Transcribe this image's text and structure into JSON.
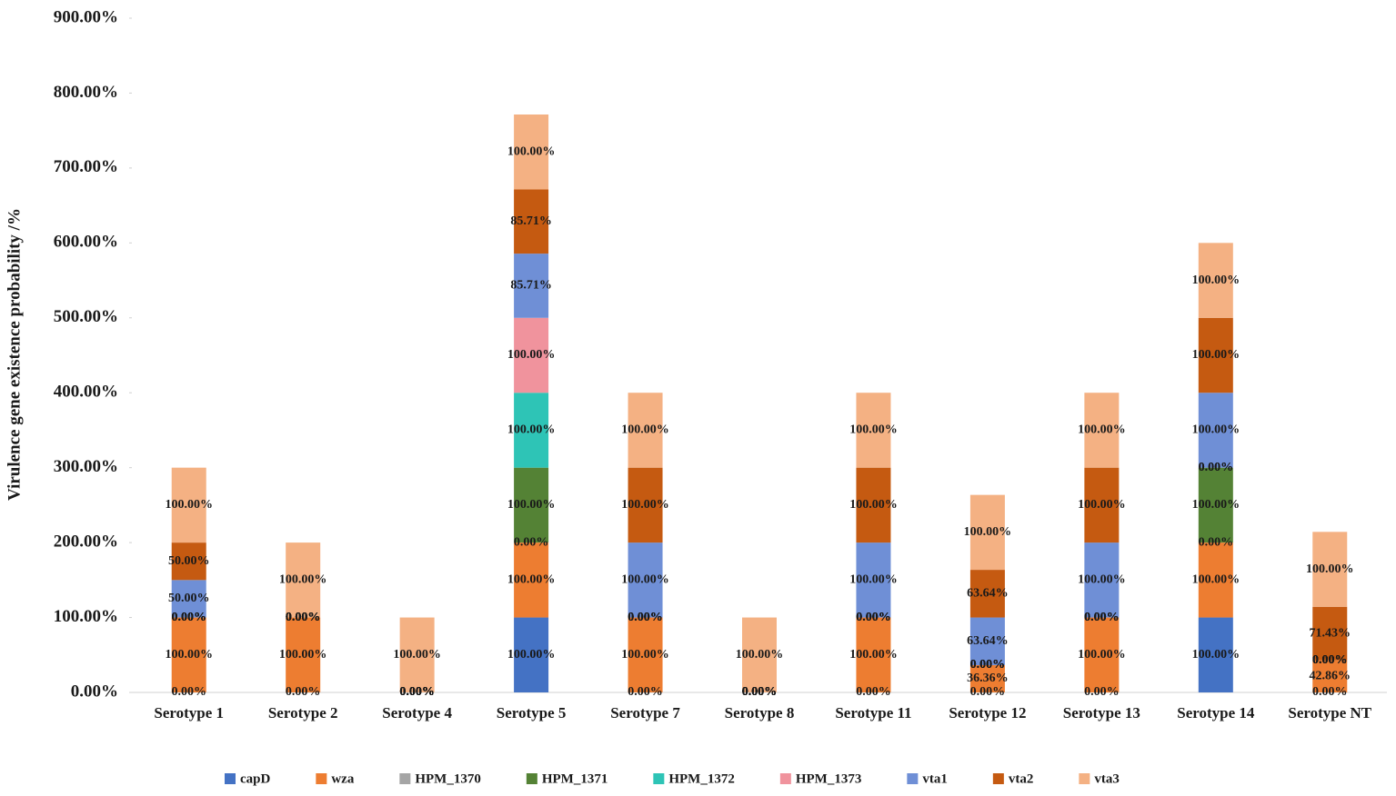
{
  "chart_data": {
    "type": "stacked-bar",
    "y_axis_label": "Virulence gene existence probability /%",
    "categories": [
      "Serotype 1",
      "Serotype 2",
      "Serotype 4",
      "Serotype 5",
      "Serotype 7",
      "Serotype 8",
      "Serotype 11",
      "Serotype 12",
      "Serotype 13",
      "Serotype 14",
      "Serotype NT"
    ],
    "ylim": [
      0,
      900
    ],
    "yticks": [
      {
        "value": 0,
        "label": "0.00%"
      },
      {
        "value": 100,
        "label": "100.00%"
      },
      {
        "value": 200,
        "label": "200.00%"
      },
      {
        "value": 300,
        "label": "300.00%"
      },
      {
        "value": 400,
        "label": "400.00%"
      },
      {
        "value": 500,
        "label": "500.00%"
      },
      {
        "value": 600,
        "label": "600.00%"
      },
      {
        "value": 700,
        "label": "700.00%"
      },
      {
        "value": 800,
        "label": "800.00%"
      },
      {
        "value": 900,
        "label": "900.00%"
      }
    ],
    "legend": "bottom",
    "series": [
      {
        "name": "capD",
        "color": "#4472c4",
        "values": [
          0,
          0,
          0,
          100,
          0,
          0,
          0,
          0,
          0,
          100,
          0
        ],
        "value_labels": [
          "0.00%",
          "0.00%",
          "0.00%",
          "100.00%",
          "0.00%",
          "0.00%",
          "0.00%",
          "0.00%",
          "0.00%",
          "100.00%",
          "0.00%"
        ]
      },
      {
        "name": "wza",
        "color": "#ed7d31",
        "values": [
          100,
          100,
          0,
          100,
          100,
          0,
          100,
          36.36,
          100,
          100,
          42.86
        ],
        "value_labels": [
          "100.00%",
          "100.00%",
          "0.00%",
          "100.00%",
          "100.00%",
          "0.00%",
          "100.00%",
          "36.36%",
          "100.00%",
          "100.00%",
          "42.86%"
        ]
      },
      {
        "name": "HPM_1370",
        "color": "#a5a5a5",
        "values": [
          0,
          0,
          0,
          0,
          0,
          0,
          0,
          0,
          0,
          0,
          0
        ],
        "value_labels": [
          "0.00%",
          "0.00%",
          "0.00%",
          "0.00%",
          "0.00%",
          "0.00%",
          "0.00%",
          "0.00%",
          "0.00%",
          "0.00%",
          "0.00%"
        ]
      },
      {
        "name": "HPM_1371",
        "color": "#548235",
        "values": [
          0,
          0,
          0,
          100,
          0,
          0,
          0,
          0,
          0,
          100,
          0
        ],
        "value_labels": [
          "0.00%",
          "0.00%",
          "0.00%",
          "100.00%",
          "0.00%",
          "0.00%",
          "0.00%",
          "0.00%",
          "0.00%",
          "100.00%",
          "0.00%"
        ]
      },
      {
        "name": "HPM_1372",
        "color": "#2ec4b6",
        "values": [
          0,
          0,
          0,
          100,
          0,
          0,
          0,
          0,
          0,
          0,
          0
        ],
        "value_labels": [
          "0.00%",
          "0.00%",
          "0.00%",
          "100.00%",
          "0.00%",
          "0.00%",
          "0.00%",
          "0.00%",
          "0.00%",
          "0.00%",
          "0.00%"
        ]
      },
      {
        "name": "HPM_1373",
        "color": "#f0939d",
        "values": [
          0,
          0,
          0,
          100,
          0,
          0,
          0,
          0,
          0,
          0,
          0
        ],
        "value_labels": [
          "0.00%",
          "0.00%",
          "0.00%",
          "100.00%",
          "0.00%",
          "0.00%",
          "0.00%",
          "0.00%",
          "0.00%",
          "0.00%",
          "0.00%"
        ]
      },
      {
        "name": "vta1",
        "color": "#6f8fd6",
        "values": [
          50,
          0,
          0,
          85.71,
          100,
          0,
          100,
          63.64,
          100,
          100,
          0
        ],
        "value_labels": [
          "50.00%",
          "0.00%",
          "0.00%",
          "85.71%",
          "100.00%",
          "0.00%",
          "100.00%",
          "63.64%",
          "100.00%",
          "100.00%",
          "0.00%"
        ]
      },
      {
        "name": "vta2",
        "color": "#c55a11",
        "values": [
          50,
          0,
          0,
          85.71,
          100,
          0,
          100,
          63.64,
          100,
          100,
          71.43
        ],
        "value_labels": [
          "50.00%",
          "0.00%",
          "0.00%",
          "85.71%",
          "100.00%",
          "0.00%",
          "100.00%",
          "63.64%",
          "100.00%",
          "100.00%",
          "71.43%"
        ]
      },
      {
        "name": "vta3",
        "color": "#f4b183",
        "values": [
          100,
          100,
          100,
          100,
          100,
          100,
          100,
          100,
          100,
          100,
          100
        ],
        "value_labels": [
          "100.00%",
          "100.00%",
          "100.00%",
          "100.00%",
          "100.00%",
          "100.00%",
          "100.00%",
          "100.00%",
          "100.00%",
          "100.00%",
          "100.00%"
        ]
      }
    ]
  }
}
